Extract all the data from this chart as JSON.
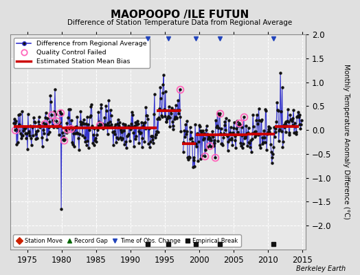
{
  "title": "MAOPOOPO /ILE FUTUN",
  "subtitle": "Difference of Station Temperature Data from Regional Average",
  "ylabel": "Monthly Temperature Anomaly Difference (°C)",
  "xlim": [
    1972.5,
    2015.5
  ],
  "ylim": [
    -2.5,
    2.0
  ],
  "yticks": [
    -2.0,
    -1.5,
    -1.0,
    -0.5,
    0.0,
    0.5,
    1.0,
    1.5,
    2.0
  ],
  "xticks": [
    1975,
    1980,
    1985,
    1990,
    1995,
    2000,
    2005,
    2010,
    2015
  ],
  "background_color": "#e0e0e0",
  "plot_bg_color": "#e8e8e8",
  "credit": "Berkeley Earth",
  "bias_segments": [
    {
      "x_start": 1973.0,
      "x_end": 1980.0,
      "bias": 0.08
    },
    {
      "x_start": 1980.0,
      "x_end": 1993.8,
      "bias": 0.04
    },
    {
      "x_start": 1993.8,
      "x_end": 1997.3,
      "bias": 0.4
    },
    {
      "x_start": 1997.5,
      "x_end": 1999.5,
      "bias": -0.28
    },
    {
      "x_start": 1999.5,
      "x_end": 2002.8,
      "bias": -0.1
    },
    {
      "x_start": 2002.8,
      "x_end": 2007.0,
      "bias": -0.1
    },
    {
      "x_start": 2007.0,
      "x_end": 2011.0,
      "bias": -0.08
    },
    {
      "x_start": 2011.0,
      "x_end": 2014.5,
      "bias": 0.08
    }
  ],
  "empirical_breaks": [
    1992.5,
    1995.5,
    1999.5,
    2003.0,
    2010.8
  ],
  "time_of_obs_changes": [
    1992.5,
    1995.5,
    1999.5,
    2003.0,
    2010.8
  ],
  "qc_failed_times": [
    1973.2,
    1977.5,
    1978.5,
    1979.2,
    1979.8,
    1980.3,
    1980.8,
    1981.3,
    1985.5,
    1997.2,
    2000.8,
    2001.5,
    2002.3,
    2003.0,
    2005.8,
    2006.5
  ],
  "line_color": "#3333cc",
  "dot_color": "#111111",
  "bias_color": "#cc0000",
  "qc_color": "#ff66bb",
  "grid_color": "#ffffff",
  "grid_linestyle": "--",
  "spike_down_year": 1979.9,
  "spike_down_val": -1.65,
  "spike_up_year": 1994.8,
  "spike_up_val": 1.15,
  "spike_up2_year": 2011.8,
  "spike_up2_val": 1.2
}
